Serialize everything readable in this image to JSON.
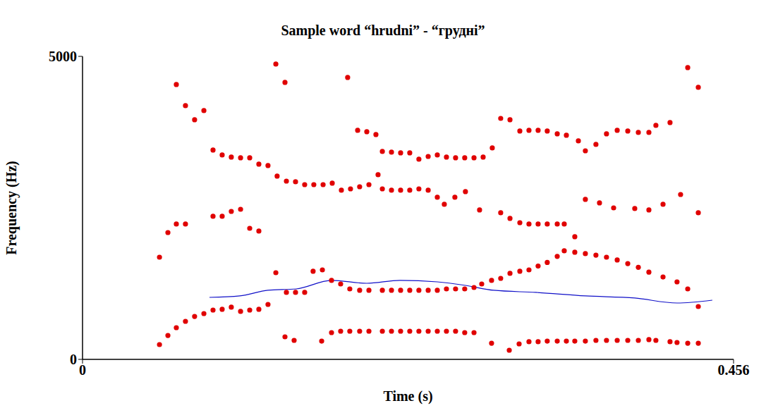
{
  "chart_data": {
    "type": "scatter",
    "title": "Sample word “hrudni” - “грудні”",
    "x_label": "Time (s)",
    "y_label": "Frequency (Hz)",
    "xlim": [
      0,
      0.456
    ],
    "xticks": [
      0,
      0.456
    ],
    "ylim": [
      0,
      5000
    ],
    "yticks": [
      0,
      5000
    ],
    "grid": false,
    "series": [
      {
        "type": "scatter",
        "color": "#e00000",
        "marker": "circle",
        "x": [
          0.0539,
          0.0598,
          0.0657,
          0.0721,
          0.0785,
          0.085,
          0.0914,
          0.0978,
          0.1042,
          0.1107,
          0.1171,
          0.1235,
          0.1299,
          0.1354,
          0.1428,
          0.1492,
          0.1556,
          0.1418,
          0.1482,
          0.1675,
          0.1744,
          0.1808,
          0.1872,
          0.1941,
          0.2006,
          0.21,
          0.2164,
          0.2228,
          0.2292,
          0.2356,
          0.2421,
          0.2485,
          0.2549,
          0.2613,
          0.2677,
          0.2742,
          0.2865,
          0.2989,
          0.3058,
          0.3127,
          0.3191,
          0.3255,
          0.3325,
          0.3389,
          0.3448,
          0.3522,
          0.3596,
          0.367,
          0.3745,
          0.3819,
          0.3893,
          0.3967,
          0.4016,
          0.4115,
          0.4164,
          0.4239,
          0.4313,
          0.1615,
          0.168,
          0.1744,
          0.1808,
          0.1872,
          0.1941,
          0.2006,
          0.21,
          0.2164,
          0.2228,
          0.2292,
          0.2356,
          0.2421,
          0.2485,
          0.2549,
          0.2613,
          0.2677,
          0.2742,
          0.2796,
          0.2865,
          0.2929,
          0.2994,
          0.3063,
          0.3127,
          0.3191,
          0.3255,
          0.3325,
          0.3374,
          0.3448,
          0.3522,
          0.3596,
          0.367,
          0.3745,
          0.3819,
          0.3893,
          0.3967,
          0.4066,
          0.4164,
          0.4239,
          0.4313,
          0.0914,
          0.0978,
          0.1042,
          0.1107,
          0.1171,
          0.1235,
          0.0539,
          0.0598,
          0.0657,
          0.0721,
          0.21,
          0.2164,
          0.2228,
          0.2292,
          0.2356,
          0.2421,
          0.2485,
          0.2534,
          0.2608,
          0.2682,
          0.2781,
          0.2929,
          0.2994,
          0.3063,
          0.3127,
          0.3191,
          0.3255,
          0.3325,
          0.3374,
          0.3448,
          0.3522,
          0.3621,
          0.372,
          0.3868,
          0.3967,
          0.4066,
          0.4189,
          0.4313,
          0.0914,
          0.0978,
          0.1042,
          0.1107,
          0.1171,
          0.1235,
          0.1299,
          0.1363,
          0.1428,
          0.1492,
          0.1556,
          0.162,
          0.1685,
          0.1749,
          0.1813,
          0.1877,
          0.1941,
          0.2006,
          0.207,
          0.21,
          0.2164,
          0.2228,
          0.2292,
          0.2356,
          0.2421,
          0.2485,
          0.2549,
          0.2613,
          0.2677,
          0.2742,
          0.2806,
          0.287,
          0.2929,
          0.2994,
          0.3063,
          0.3127,
          0.3191,
          0.3255,
          0.3325,
          0.3389,
          0.3473,
          0.3522,
          0.3596,
          0.367,
          0.3745,
          0.3819,
          0.3893,
          0.3967,
          0.4016,
          0.4115,
          0.0657,
          0.0721,
          0.0785,
          0.085,
          0.1354,
          0.1418,
          0.1857,
          0.1927,
          0.1991,
          0.2055,
          0.4239,
          0.4313
        ],
        "values": [
          244,
          395,
          523,
          628,
          709,
          756,
          814,
          826,
          861,
          791,
          814,
          826,
          907,
          1430,
          1105,
          1105,
          1105,
          372,
          314,
          302,
          442,
          465,
          465,
          465,
          465,
          465,
          465,
          465,
          465,
          465,
          465,
          465,
          465,
          465,
          442,
          442,
          267,
          151,
          256,
          291,
          291,
          302,
          302,
          302,
          302,
          302,
          314,
          314,
          314,
          314,
          314,
          326,
          314,
          291,
          279,
          267,
          267,
          1454,
          1477,
          1303,
          1244,
          1163,
          1140,
          1140,
          1140,
          1140,
          1140,
          1140,
          1140,
          1140,
          1140,
          1163,
          1163,
          1163,
          1186,
          1244,
          1303,
          1337,
          1419,
          1454,
          1477,
          1540,
          1600,
          1700,
          1791,
          1768,
          1745,
          1720,
          1686,
          1640,
          1580,
          1520,
          1440,
          1360,
          1279,
          1163,
          872,
          2361,
          2361,
          2442,
          2477,
          2163,
          2117,
          1686,
          2093,
          2233,
          2233,
          2814,
          2791,
          2791,
          2791,
          2814,
          2791,
          2675,
          2559,
          2675,
          2768,
          2466,
          2419,
          2326,
          2256,
          2233,
          2233,
          2233,
          2233,
          2233,
          2024,
          2640,
          2582,
          2500,
          2489,
          2466,
          2559,
          2721,
          2419,
          3454,
          3373,
          3338,
          3326,
          3326,
          3222,
          3198,
          3024,
          2942,
          2931,
          2884,
          2884,
          2884,
          2908,
          2791,
          2814,
          2849,
          2884,
          3047,
          3431,
          3419,
          3408,
          3408,
          3303,
          3349,
          3373,
          3338,
          3326,
          3326,
          3326,
          3338,
          3489,
          3977,
          3954,
          3768,
          3780,
          3780,
          3768,
          3722,
          3698,
          3605,
          3442,
          3547,
          3722,
          3780,
          3768,
          3745,
          3745,
          3861,
          3908,
          4536,
          4187,
          3954,
          4105,
          4873,
          4571,
          4652,
          3780,
          3757,
          3710,
          4815,
          4489
        ]
      },
      {
        "type": "line",
        "color": "#1010c8",
        "x": [
          0.0889,
          0.1102,
          0.1299,
          0.1497,
          0.1744,
          0.1991,
          0.2223,
          0.2485,
          0.2682,
          0.288,
          0.3176,
          0.3522,
          0.3868,
          0.4164,
          0.4411
        ],
        "values": [
          1023,
          1047,
          1140,
          1163,
          1303,
          1256,
          1303,
          1279,
          1221,
          1140,
          1105,
          1047,
          1012,
          930,
          977
        ]
      }
    ]
  }
}
